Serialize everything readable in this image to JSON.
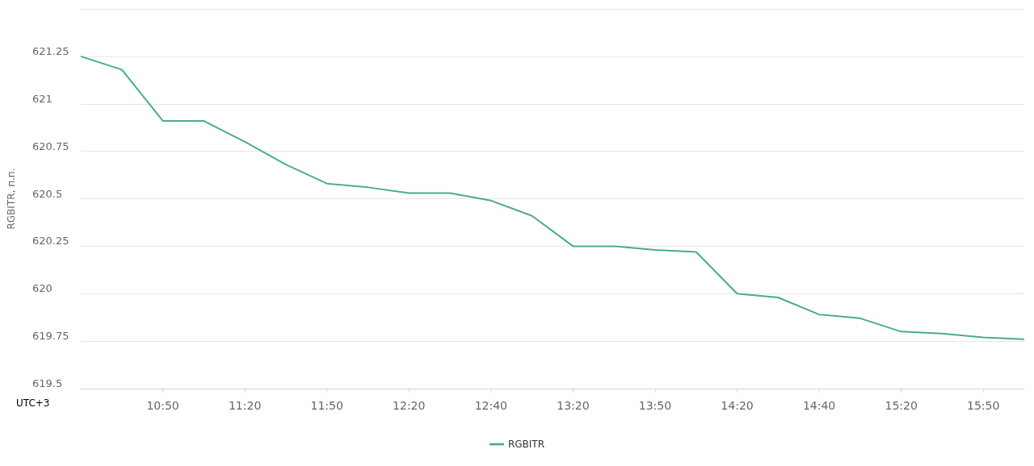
{
  "chart_data": {
    "type": "line",
    "ylabel": "RGBITR, п.п.",
    "annotations": [
      "UTC+3"
    ],
    "categories": [
      null,
      null,
      "10:50",
      null,
      "11:20",
      null,
      "11:50",
      null,
      "12:20",
      null,
      "12:40",
      null,
      "13:20",
      null,
      "13:50",
      null,
      "14:20",
      null,
      "14:40",
      null,
      "15:20",
      null,
      "15:50",
      null
    ],
    "series": [
      {
        "name": "RGBITR",
        "color": "#4bae7f",
        "values": [
          621.25,
          621.18,
          620.91,
          620.91,
          620.8,
          620.68,
          620.58,
          620.56,
          620.53,
          620.53,
          620.49,
          620.41,
          620.25,
          620.25,
          620.23,
          620.22,
          620.0,
          619.98,
          619.89,
          619.87,
          619.8,
          619.79,
          619.77,
          619.76
        ]
      }
    ],
    "ylim": [
      619.5,
      621.5
    ],
    "yticks": [
      619.5,
      619.75,
      620,
      620.25,
      620.5,
      620.75,
      621,
      621.25,
      {
        "value": 621.5,
        "label": null
      }
    ],
    "grid": "y",
    "legend": "bottom",
    "marker": "none",
    "line_style": "solid"
  }
}
